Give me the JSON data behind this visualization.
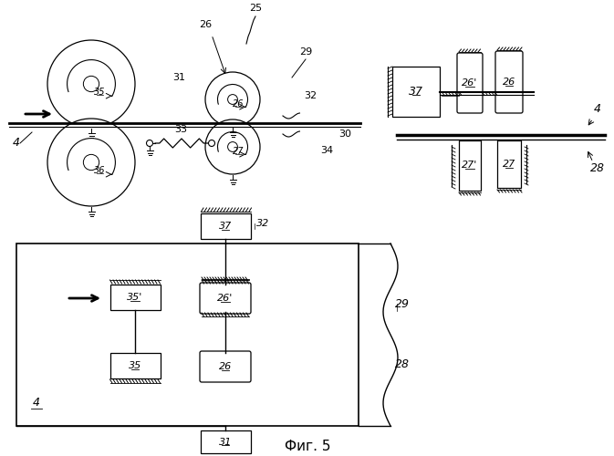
{
  "bg_color": "#ffffff",
  "line_color": "#000000",
  "fig_label": "Фиг. 5"
}
